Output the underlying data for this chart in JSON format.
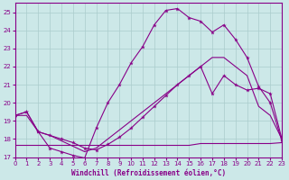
{
  "xlabel": "Windchill (Refroidissement éolien,°C)",
  "xlim": [
    0,
    23
  ],
  "ylim": [
    17,
    25.5
  ],
  "yticks": [
    17,
    18,
    19,
    20,
    21,
    22,
    23,
    24,
    25
  ],
  "xticks": [
    0,
    1,
    2,
    3,
    4,
    5,
    6,
    7,
    8,
    9,
    10,
    11,
    12,
    13,
    14,
    15,
    16,
    17,
    18,
    19,
    20,
    21,
    22,
    23
  ],
  "bg_color": "#cce8e8",
  "grid_color": "#aacccc",
  "line_color": "#880088",
  "line1_x": [
    0,
    1,
    2,
    3,
    4,
    5,
    6,
    7,
    8,
    9,
    10,
    11,
    12,
    13,
    14,
    15,
    16,
    17,
    18,
    19,
    20,
    21,
    22,
    23
  ],
  "line1_y": [
    19.3,
    19.5,
    18.4,
    17.5,
    17.3,
    17.1,
    16.95,
    18.6,
    20.0,
    21.0,
    22.2,
    23.1,
    24.3,
    25.1,
    25.2,
    24.7,
    24.5,
    23.9,
    24.3,
    23.5,
    22.5,
    20.9,
    20.0,
    17.9
  ],
  "line2_x": [
    0,
    1,
    2,
    3,
    4,
    5,
    6,
    7,
    8,
    9,
    10,
    11,
    12,
    13,
    14,
    15,
    16,
    17,
    18,
    19,
    20,
    21,
    22,
    23
  ],
  "line2_y": [
    19.3,
    19.5,
    18.4,
    18.2,
    18.0,
    17.8,
    17.5,
    17.4,
    17.7,
    18.1,
    18.6,
    19.2,
    19.8,
    20.4,
    21.0,
    21.5,
    22.0,
    20.5,
    21.5,
    21.0,
    20.7,
    20.8,
    20.5,
    18.0
  ],
  "line3_x": [
    0,
    1,
    2,
    3,
    4,
    5,
    6,
    7,
    8,
    9,
    10,
    11,
    12,
    13,
    14,
    15,
    16,
    17,
    18,
    19,
    20,
    21,
    22,
    23
  ],
  "line3_y": [
    19.3,
    19.3,
    18.4,
    18.2,
    17.9,
    17.6,
    17.3,
    17.5,
    18.0,
    18.5,
    19.0,
    19.5,
    20.0,
    20.5,
    21.0,
    21.5,
    22.0,
    22.5,
    22.5,
    22.0,
    21.5,
    19.8,
    19.3,
    18.0
  ],
  "line4_x": [
    0,
    1,
    2,
    3,
    4,
    5,
    6,
    7,
    8,
    9,
    10,
    11,
    12,
    13,
    14,
    15,
    16,
    17,
    18,
    19,
    20,
    21,
    22,
    23
  ],
  "line4_y": [
    17.65,
    17.65,
    17.65,
    17.65,
    17.65,
    17.65,
    17.65,
    17.65,
    17.65,
    17.65,
    17.65,
    17.65,
    17.65,
    17.65,
    17.65,
    17.65,
    17.75,
    17.75,
    17.75,
    17.75,
    17.75,
    17.75,
    17.75,
    17.8
  ]
}
